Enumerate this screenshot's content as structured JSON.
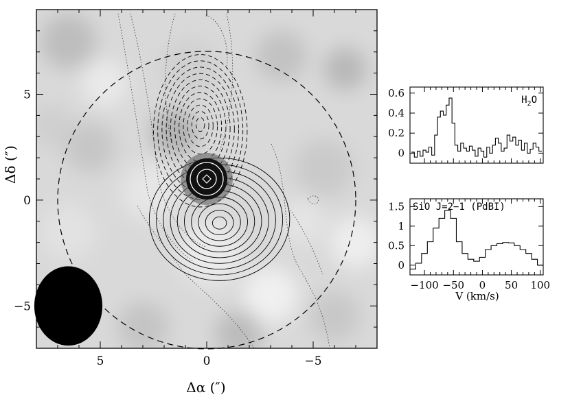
{
  "chart_data": [
    {
      "type": "heatmap",
      "title": "",
      "xlabel": "Δα (″)",
      "ylabel": "Δδ (″)",
      "xlim": [
        8,
        -8
      ],
      "ylim": [
        -7,
        9
      ],
      "x_ticks": [
        "5",
        "0",
        "−5"
      ],
      "x_tick_values": [
        5,
        0,
        -5
      ],
      "y_ticks": [
        "5",
        "0",
        "−5"
      ],
      "y_tick_values": [
        5,
        0,
        -5
      ],
      "background": "greyscale continuum map",
      "peak": {
        "x": 0,
        "y": 1
      },
      "primary_beam_radius": 7,
      "beam": {
        "x": 6.5,
        "y": -5,
        "major": 2.5,
        "minor": 2.0
      },
      "contour_sets": [
        {
          "name": "red lobe",
          "style": "solid",
          "center": [
            -0.6,
            -1.1
          ],
          "rx_max": 3.3,
          "ry_max": 2.9,
          "levels": 10
        },
        {
          "name": "blue lobe",
          "style": "dashed",
          "center": [
            0.3,
            3.6
          ],
          "rx_max": 2.2,
          "ry_max": 3.6,
          "levels": 11
        },
        {
          "name": "extended",
          "style": "dotted"
        }
      ]
    },
    {
      "type": "line",
      "label": "H2O",
      "label_text": "H",
      "label_sub": "2",
      "label_tail": "O",
      "xlim": [
        -125,
        105
      ],
      "ylim": [
        -0.1,
        0.66
      ],
      "y_ticks": [
        "0",
        "0.2",
        "0.4",
        "0.6"
      ],
      "y_tick_values": [
        0,
        0.2,
        0.4,
        0.6
      ],
      "x": [
        -120,
        -115,
        -110,
        -105,
        -100,
        -95,
        -90,
        -85,
        -80,
        -75,
        -70,
        -65,
        -60,
        -55,
        -50,
        -45,
        -40,
        -35,
        -30,
        -25,
        -20,
        -15,
        -10,
        -5,
        0,
        5,
        10,
        15,
        20,
        25,
        30,
        35,
        40,
        45,
        50,
        55,
        60,
        65,
        70,
        75,
        80,
        85,
        90,
        95,
        100
      ],
      "values": [
        0.01,
        -0.04,
        0.02,
        -0.03,
        0.03,
        0.01,
        0.06,
        -0.02,
        0.18,
        0.36,
        0.42,
        0.38,
        0.48,
        0.55,
        0.3,
        0.08,
        0.02,
        0.1,
        0.05,
        0.02,
        0.07,
        0.03,
        -0.03,
        0.05,
        0.02,
        -0.04,
        0.06,
        0.0,
        0.08,
        0.15,
        0.1,
        0.02,
        0.05,
        0.18,
        0.12,
        0.16,
        0.08,
        0.13,
        0.03,
        0.1,
        0.0,
        0.04,
        0.1,
        0.06,
        0.02
      ]
    },
    {
      "type": "line",
      "label": "SiO J=2−1 (PdBI)",
      "xlabel": "V (km/s)",
      "xlim": [
        -125,
        105
      ],
      "ylim": [
        -0.25,
        1.7
      ],
      "x_ticks": [
        "−100",
        "−50",
        "0",
        "50",
        "100"
      ],
      "x_tick_values": [
        -100,
        -50,
        0,
        50,
        100
      ],
      "y_ticks": [
        "0",
        "0.5",
        "1",
        "1.5"
      ],
      "y_tick_values": [
        0,
        0.5,
        1,
        1.5
      ],
      "x": [
        -120,
        -110,
        -100,
        -90,
        -80,
        -70,
        -60,
        -50,
        -40,
        -30,
        -20,
        -10,
        0,
        10,
        20,
        30,
        40,
        50,
        60,
        70,
        80,
        90,
        100
      ],
      "values": [
        -0.1,
        0.05,
        0.3,
        0.6,
        0.95,
        1.2,
        1.4,
        1.2,
        0.6,
        0.3,
        0.15,
        0.1,
        0.2,
        0.4,
        0.5,
        0.55,
        0.58,
        0.57,
        0.5,
        0.4,
        0.3,
        0.15,
        0.0
      ]
    }
  ]
}
